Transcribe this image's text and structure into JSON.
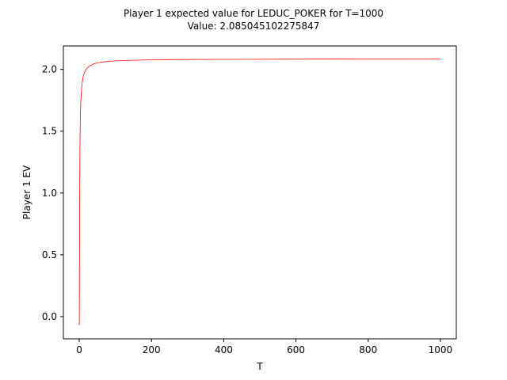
{
  "chart_data": {
    "type": "line",
    "title_line1": "Player 1 expected value for LEDUC_POKER for T=1000",
    "title_line2": "Value: 2.085045102275847",
    "xlabel": "T",
    "ylabel": "Player 1 EV",
    "xlim": [
      -44,
      1044
    ],
    "ylim": [
      -0.18,
      2.19
    ],
    "x_ticks": [
      0,
      200,
      400,
      600,
      800,
      1000
    ],
    "x_tick_labels": [
      "0",
      "200",
      "400",
      "600",
      "800",
      "1000"
    ],
    "y_ticks": [
      0.0,
      0.5,
      1.0,
      1.5,
      2.0
    ],
    "y_tick_labels": [
      "0.0",
      "0.5",
      "1.0",
      "1.5",
      "2.0"
    ],
    "grid": false,
    "line_color": "#ff0000",
    "series": [
      {
        "x": [
          0,
          1,
          2,
          3,
          4,
          5,
          6,
          8,
          10,
          12,
          15,
          20,
          25,
          30,
          40,
          50,
          60,
          80,
          100,
          150,
          200,
          250,
          300,
          400,
          500,
          600,
          700,
          800,
          900,
          1000
        ],
        "values": [
          -0.07,
          0.8,
          1.42,
          1.62,
          1.72,
          1.78,
          1.83,
          1.89,
          1.93,
          1.955,
          1.98,
          2.005,
          2.02,
          2.03,
          2.045,
          2.053,
          2.058,
          2.065,
          2.069,
          2.074,
          2.077,
          2.079,
          2.08,
          2.081,
          2.082,
          2.083,
          2.084,
          2.0845,
          2.085,
          2.085
        ]
      }
    ]
  }
}
